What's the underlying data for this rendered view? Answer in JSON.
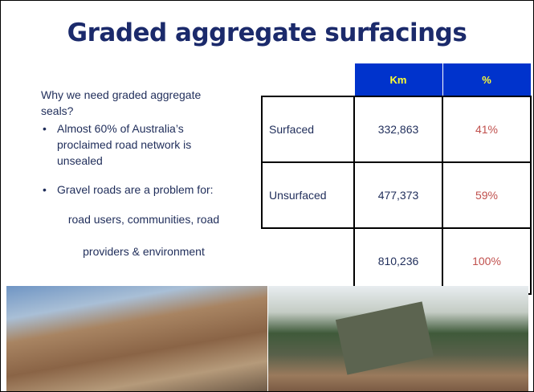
{
  "title": "Graded aggregate surfacings",
  "intro": "Why we need graded aggregate seals?",
  "bullets": [
    "Almost 60% of Australia’s proclaimed road network is unsealed",
    "Gravel roads are a problem for:"
  ],
  "continuation": [
    "road users, communities, road",
    "providers & environment"
  ],
  "table": {
    "header": [
      "Km",
      "%"
    ],
    "rows": [
      {
        "label": "Surfaced",
        "km": "332,863",
        "pct": "41%"
      },
      {
        "label": "Unsurfaced",
        "km": "477,373",
        "pct": "59%"
      },
      {
        "km": "810,236",
        "pct": "100%"
      }
    ]
  }
}
